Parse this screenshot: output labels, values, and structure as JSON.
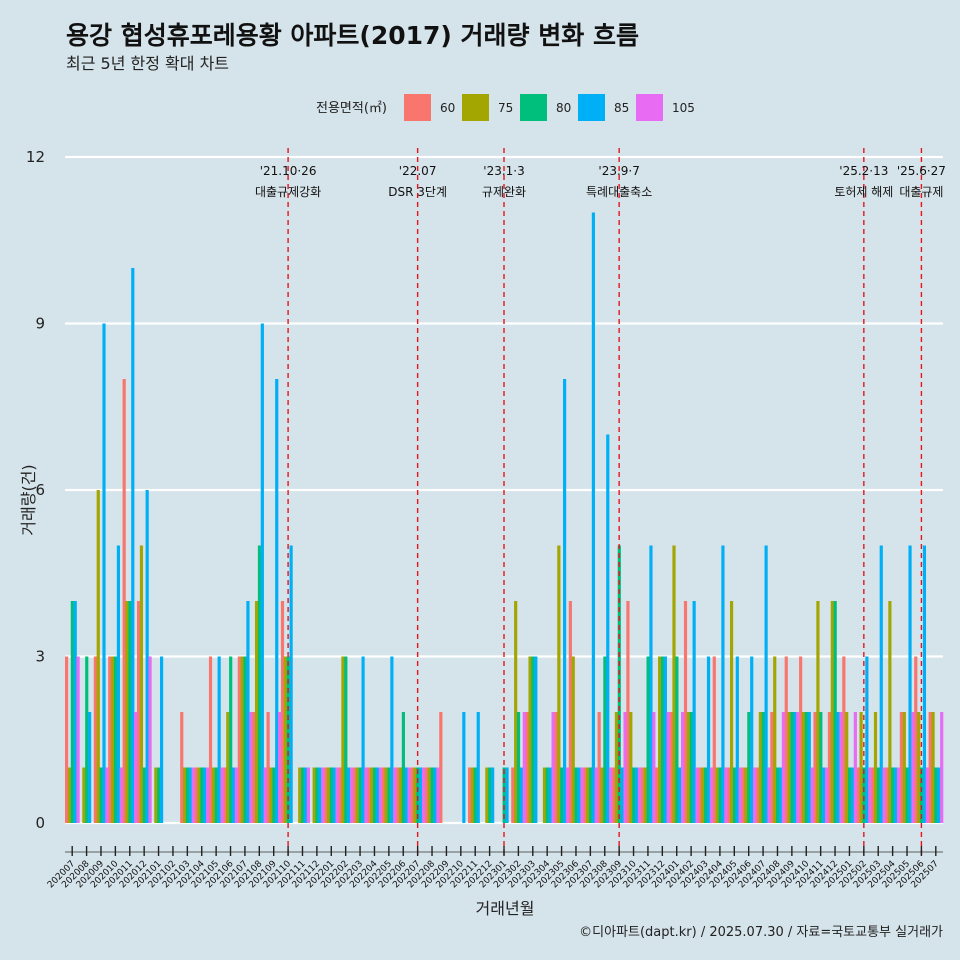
{
  "chart_data": {
    "type": "bar",
    "title": "용강 협성휴포레용황 아파트(2017) 거래량 변화 흐름",
    "subtitle": "최근 5년 한정 확대 차트",
    "xlabel": "거래년월",
    "ylabel": "거래량(건)",
    "ylim": [
      -0.6,
      12.6
    ],
    "yticks": [
      0,
      3,
      6,
      9,
      12
    ],
    "legend_title": "전용면적(㎡)",
    "caption": "©디아파트(dapt.kr) / 2025.07.30 / 자료=국토교통부 실거래가",
    "categories": [
      "202007",
      "202008",
      "202009",
      "202010",
      "202011",
      "202012",
      "202101",
      "202102",
      "202103",
      "202104",
      "202105",
      "202106",
      "202107",
      "202108",
      "202109",
      "202110",
      "202111",
      "202112",
      "202201",
      "202202",
      "202203",
      "202204",
      "202205",
      "202206",
      "202207",
      "202208",
      "202209",
      "202210",
      "202211",
      "202212",
      "202301",
      "202302",
      "202303",
      "202304",
      "202305",
      "202306",
      "202307",
      "202308",
      "202309",
      "202310",
      "202311",
      "202312",
      "202401",
      "202402",
      "202403",
      "202404",
      "202405",
      "202406",
      "202407",
      "202408",
      "202409",
      "202410",
      "202411",
      "202412",
      "202501",
      "202502",
      "202503",
      "202504",
      "202505",
      "202506",
      "202507"
    ],
    "series": [
      {
        "name": "60",
        "color": "#f8766d",
        "values": [
          3,
          0,
          3,
          3,
          8,
          4,
          0,
          0,
          2,
          1,
          3,
          1,
          3,
          2,
          2,
          4,
          0,
          0,
          1,
          1,
          1,
          1,
          1,
          1,
          1,
          1,
          2,
          0,
          1,
          0,
          0,
          1,
          2,
          0,
          2,
          4,
          1,
          2,
          1,
          4,
          1,
          1,
          2,
          4,
          1,
          3,
          1,
          1,
          1,
          2,
          3,
          3,
          2,
          2,
          3,
          1,
          1,
          1,
          2,
          3,
          2
        ]
      },
      {
        "name": "75",
        "color": "#a3a500",
        "values": [
          1,
          1,
          6,
          3,
          4,
          5,
          1,
          0,
          1,
          1,
          1,
          2,
          3,
          4,
          1,
          3,
          1,
          1,
          1,
          3,
          1,
          1,
          1,
          1,
          1,
          1,
          0,
          0,
          1,
          1,
          0,
          4,
          3,
          1,
          5,
          3,
          1,
          1,
          2,
          2,
          1,
          3,
          5,
          2,
          1,
          1,
          4,
          1,
          2,
          3,
          2,
          2,
          4,
          4,
          2,
          2,
          2,
          4,
          2,
          2,
          2
        ]
      },
      {
        "name": "80",
        "color": "#00bf7d",
        "values": [
          4,
          3,
          1,
          3,
          4,
          1,
          1,
          0,
          1,
          1,
          1,
          3,
          3,
          5,
          1,
          3,
          1,
          1,
          1,
          3,
          1,
          1,
          1,
          2,
          1,
          1,
          0,
          0,
          1,
          1,
          1,
          2,
          3,
          1,
          1,
          1,
          1,
          3,
          5,
          1,
          3,
          3,
          3,
          2,
          1,
          1,
          1,
          2,
          2,
          1,
          2,
          2,
          2,
          4,
          1,
          1,
          1,
          1,
          1,
          1,
          1
        ]
      },
      {
        "name": "85",
        "color": "#00b0f6",
        "values": [
          4,
          2,
          9,
          5,
          10,
          6,
          3,
          0,
          1,
          1,
          3,
          1,
          4,
          9,
          8,
          5,
          1,
          1,
          1,
          1,
          3,
          1,
          3,
          1,
          1,
          1,
          0,
          2,
          2,
          1,
          1,
          1,
          3,
          1,
          8,
          1,
          11,
          7,
          1,
          1,
          5,
          3,
          1,
          4,
          3,
          5,
          3,
          3,
          5,
          1,
          2,
          2,
          1,
          2,
          1,
          3,
          5,
          1,
          5,
          5,
          1
        ]
      },
      {
        "name": "105",
        "color": "#e76bf3",
        "values": [
          3,
          0,
          1,
          1,
          2,
          3,
          0,
          0,
          1,
          1,
          1,
          1,
          2,
          1,
          2,
          0,
          1,
          1,
          1,
          1,
          1,
          1,
          1,
          1,
          1,
          1,
          0,
          0,
          0,
          0,
          0,
          2,
          0,
          2,
          1,
          1,
          1,
          1,
          2,
          1,
          2,
          2,
          2,
          1,
          1,
          1,
          1,
          1,
          1,
          2,
          2,
          1,
          1,
          2,
          2,
          1,
          1,
          1,
          2,
          1,
          2
        ]
      }
    ],
    "annotations": [
      {
        "at": "202110",
        "label1": "'21.10·26",
        "label2": "대출규제강화"
      },
      {
        "at": "202207",
        "label1": "'22.07",
        "label2": "DSR 3단계"
      },
      {
        "at": "202301",
        "label1": "'23.1·3",
        "label2": "규제완화"
      },
      {
        "at": "202309",
        "label1": "'23.9·7",
        "label2": "특례대출축소"
      },
      {
        "at": "202502",
        "label1": "'25.2·13",
        "label2": "토허제 해제"
      },
      {
        "at": "202506",
        "label1": "'25.6·27",
        "label2": "대출규제"
      }
    ]
  }
}
